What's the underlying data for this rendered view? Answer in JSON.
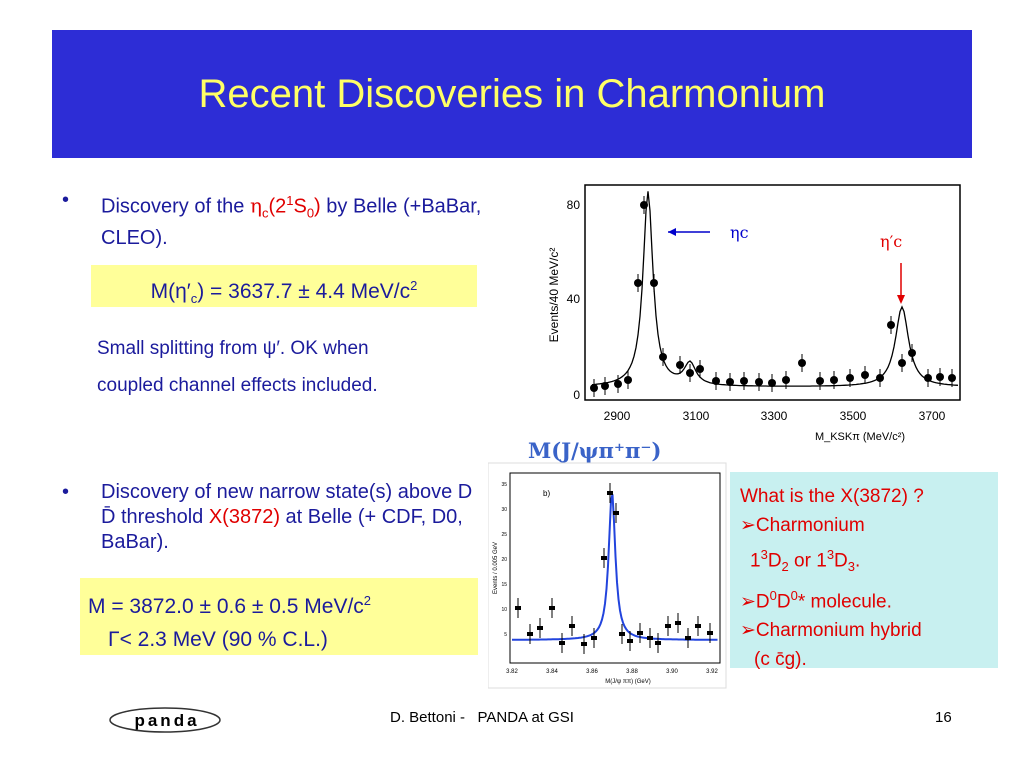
{
  "title": "Recent Discoveries in Charmonium",
  "bullet1": [
    "Discovery of the ",
    "η",
    "c",
    "(2",
    "1",
    "S",
    "0",
    ")",
    " by Belle (+BaBar, CLEO)."
  ],
  "box1": [
    "M(η′",
    "c",
    ") = 3637.7 ± 4.4 MeV/c",
    "2"
  ],
  "note1": [
    "Small splitting from ψ′. OK when",
    "coupled channel effects included."
  ],
  "bullet2": [
    "Discovery of new narrow state(s) above D D̄ threshold ",
    "X(3872)",
    " at Belle (+ CDF, D0, BaBar)."
  ],
  "box2": [
    "M = 3872.0 ± 0.6 ± 0.5 MeV/c",
    "2",
    "Γ< 2.3 MeV (90 % C.L.)"
  ],
  "side": {
    "line1": "What is the X(3872) ?",
    "line2": "➢Charmonium",
    "line3": [
      "1",
      "3",
      "D",
      "2",
      " or 1",
      "3",
      "D",
      "3",
      "."
    ],
    "line4": [
      "➢D",
      "0",
      "D",
      "0",
      "* molecule."
    ],
    "line5": "➢Charmonium hybrid",
    "line6": "(c c̄g)."
  },
  "figure1": {
    "ylabel": "Events/40 MeV/c²",
    "xlabel": "M_KSKπ (MeV/c²)",
    "yticks": [
      "0",
      "40",
      "80"
    ],
    "xticks": [
      "2900",
      "3100",
      "3300",
      "3500",
      "3700"
    ],
    "annotations": [
      "ηc",
      "η′c"
    ]
  },
  "figure2": {
    "title": "M(J/ψπ⁺π⁻)",
    "panel": "b)",
    "ylabel": "Events / 0.005 GeV",
    "xlabel": "M(J/ψ ππ) (GeV)",
    "yticks": [
      "35",
      "30",
      "25",
      "20",
      "15",
      "10",
      "5"
    ],
    "xticks": [
      "3.82",
      "3.84",
      "3.86",
      "3.88",
      "3.90",
      "3.92"
    ]
  },
  "footer": {
    "logo": "panda",
    "center": "D. Bettoni -   PANDA at GSI",
    "page": "16"
  }
}
